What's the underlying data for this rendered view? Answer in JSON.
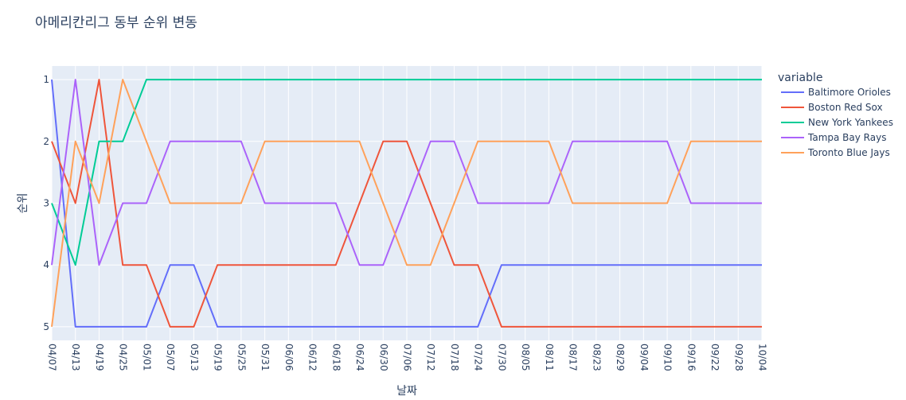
{
  "chart_data": {
    "type": "line",
    "title": "아메리칸리그 동부 순위 변동",
    "xlabel": "날짜",
    "ylabel": "순위",
    "y_reversed": true,
    "ylim": [
      5.22,
      0.78
    ],
    "y_ticks": [
      1,
      2,
      3,
      4,
      5
    ],
    "x": [
      "04/07",
      "04/13",
      "04/19",
      "04/25",
      "05/01",
      "05/07",
      "05/13",
      "05/19",
      "05/25",
      "05/31",
      "06/06",
      "06/12",
      "06/18",
      "06/24",
      "06/30",
      "07/06",
      "07/12",
      "07/18",
      "07/24",
      "07/30",
      "08/05",
      "08/11",
      "08/17",
      "08/23",
      "08/29",
      "09/04",
      "09/10",
      "09/16",
      "09/22",
      "09/28",
      "10/04"
    ],
    "legend_title": "variable",
    "legend_position": "top-right",
    "plot_bg": "#e5ecf6",
    "series": [
      {
        "name": "Baltimore Orioles",
        "color": "#636efa",
        "values": [
          1,
          5,
          5,
          5,
          5,
          4,
          4,
          5,
          5,
          5,
          5,
          5,
          5,
          5,
          5,
          5,
          5,
          5,
          5,
          4,
          4,
          4,
          4,
          4,
          4,
          4,
          4,
          4,
          4,
          4,
          4
        ]
      },
      {
        "name": "Boston Red Sox",
        "color": "#ef553b",
        "values": [
          2,
          3,
          1,
          4,
          4,
          5,
          5,
          4,
          4,
          4,
          4,
          4,
          4,
          3,
          2,
          2,
          3,
          4,
          4,
          5,
          5,
          5,
          5,
          5,
          5,
          5,
          5,
          5,
          5,
          5,
          5
        ]
      },
      {
        "name": "New York Yankees",
        "color": "#00cc96",
        "values": [
          3,
          4,
          2,
          2,
          1,
          1,
          1,
          1,
          1,
          1,
          1,
          1,
          1,
          1,
          1,
          1,
          1,
          1,
          1,
          1,
          1,
          1,
          1,
          1,
          1,
          1,
          1,
          1,
          1,
          1,
          1
        ]
      },
      {
        "name": "Tampa Bay Rays",
        "color": "#ab63fa",
        "values": [
          4,
          1,
          4,
          3,
          3,
          2,
          2,
          2,
          2,
          3,
          3,
          3,
          3,
          4,
          4,
          3,
          2,
          2,
          3,
          3,
          3,
          3,
          2,
          2,
          2,
          2,
          2,
          3,
          3,
          3,
          3
        ]
      },
      {
        "name": "Toronto Blue Jays",
        "color": "#ffa15a",
        "values": [
          5,
          2,
          3,
          1,
          2,
          3,
          3,
          3,
          3,
          2,
          2,
          2,
          2,
          2,
          3,
          4,
          4,
          3,
          2,
          2,
          2,
          2,
          3,
          3,
          3,
          3,
          3,
          2,
          2,
          2,
          2
        ]
      }
    ]
  }
}
